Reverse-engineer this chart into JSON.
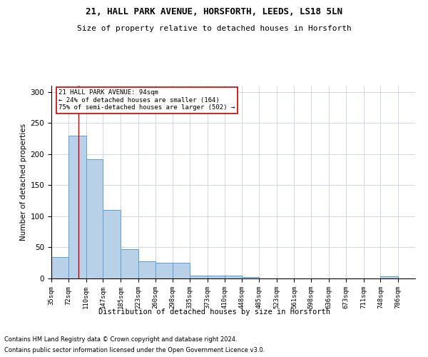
{
  "title1": "21, HALL PARK AVENUE, HORSFORTH, LEEDS, LS18 5LN",
  "title2": "Size of property relative to detached houses in Horsforth",
  "xlabel": "Distribution of detached houses by size in Horsforth",
  "ylabel": "Number of detached properties",
  "footnote1": "Contains HM Land Registry data © Crown copyright and database right 2024.",
  "footnote2": "Contains public sector information licensed under the Open Government Licence v3.0.",
  "bar_edges": [
    35,
    72,
    110,
    147,
    185,
    223,
    260,
    298,
    335,
    373,
    410,
    448,
    485,
    523,
    561,
    598,
    636,
    673,
    711,
    748,
    786
  ],
  "bar_heights": [
    35,
    230,
    192,
    110,
    47,
    28,
    25,
    25,
    5,
    5,
    5,
    2,
    0,
    0,
    0,
    0,
    0,
    0,
    0,
    4
  ],
  "bar_color": "#b8d0e8",
  "bar_edge_color": "#5a9fd4",
  "red_line_x": 94,
  "annotation_title": "21 HALL PARK AVENUE: 94sqm",
  "annotation_line1": "← 24% of detached houses are smaller (164)",
  "annotation_line2": "75% of semi-detached houses are larger (502) →",
  "annotation_box_color": "#ffffff",
  "annotation_box_edge_color": "#cc0000",
  "red_line_color": "#cc0000",
  "ylim": [
    0,
    310
  ],
  "yticks": [
    0,
    50,
    100,
    150,
    200,
    250,
    300
  ],
  "background_color": "#ffffff",
  "grid_color": "#d0d8e8"
}
